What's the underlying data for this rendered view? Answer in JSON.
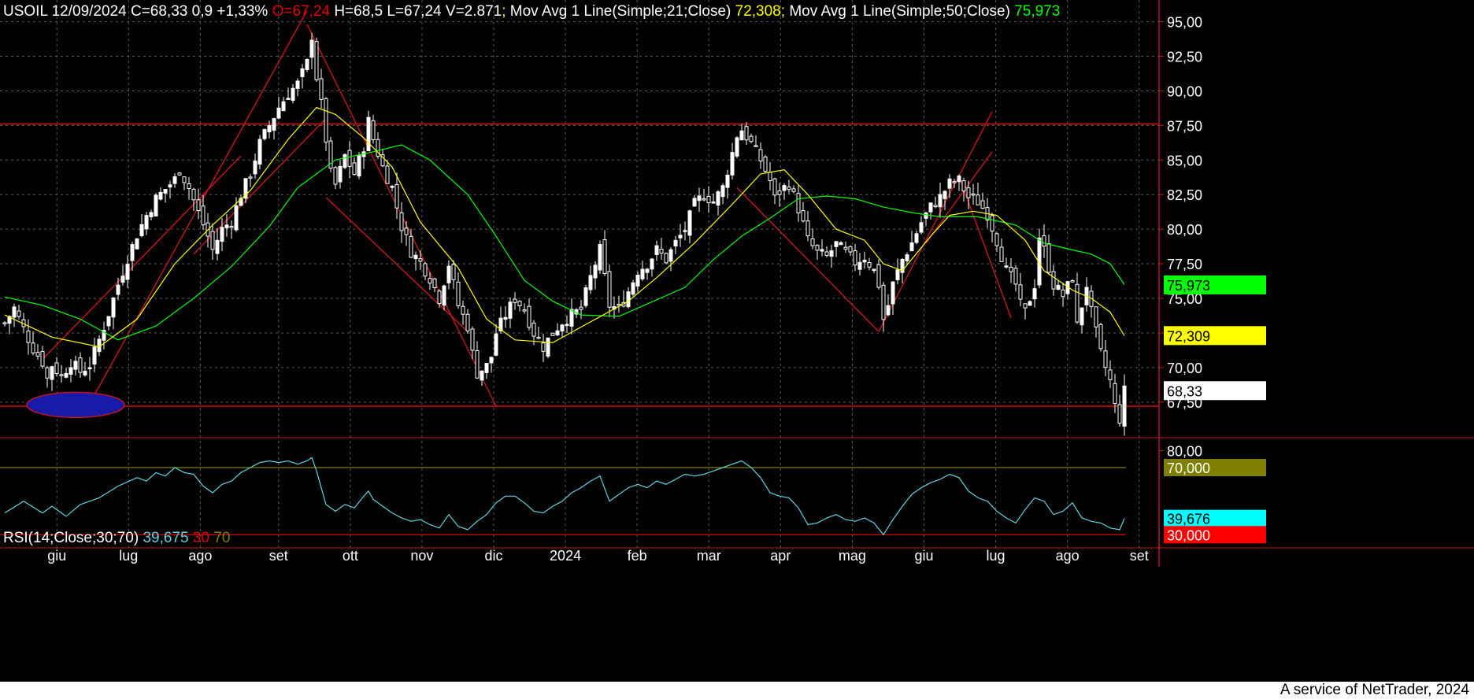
{
  "header": {
    "symbol": "USOIL",
    "date": "12/09/2024",
    "close": "C=68,33",
    "change": "0,9",
    "change_pct": "+1,33%",
    "open": "O=67,24",
    "high": "H=68,5",
    "low": "L=67,24",
    "volume": "V=2.871",
    "ma21_label": "Mov Avg 1 Line(Simple;21;Close)",
    "ma21_value": "72,308",
    "ma50_label": "Mov Avg 1 Line(Simple;50;Close)",
    "ma50_value": "75,973"
  },
  "rsi_header": {
    "label": "RSI(14;Close;30;70)",
    "value": "39,675",
    "low": "30",
    "high": "70"
  },
  "footer": "A service of NetTrader, 2024",
  "colors": {
    "background": "#000000",
    "grid": "#5a5a5a",
    "text": "#ffffff",
    "ma21": "#ffff00",
    "ma50": "#00ff00",
    "rsi": "#5fd3df",
    "trend": "#c0161a",
    "down": "#e60000",
    "level70": "#808000"
  },
  "chart_data": [
    {
      "type": "candlestick",
      "symbol": "USOIL",
      "ylim": [
        65.5,
        96.0
      ],
      "y_ticks": [
        "95,00",
        "92,50",
        "90,00",
        "87,50",
        "85,00",
        "82,50",
        "80,00",
        "77,50",
        "75,00",
        "72,50",
        "70,00",
        "67,50"
      ],
      "x_tick_labels": [
        "giu",
        "lug",
        "ago",
        "set",
        "ott",
        "nov",
        "dic",
        "2024",
        "feb",
        "mar",
        "apr",
        "mag",
        "giu",
        "lug",
        "ago",
        "set"
      ],
      "close_path": [
        [
          0,
          73.2
        ],
        [
          2,
          74.3
        ],
        [
          4,
          72.8
        ],
        [
          6,
          71.4
        ],
        [
          8,
          70.4
        ],
        [
          9,
          69.2
        ],
        [
          10,
          70.2
        ],
        [
          12,
          69.4
        ],
        [
          14,
          70.4
        ],
        [
          16,
          69.7
        ],
        [
          18,
          70.2
        ],
        [
          20,
          72.0
        ],
        [
          22,
          73.9
        ],
        [
          24,
          76.0
        ],
        [
          26,
          77.9
        ],
        [
          28,
          79.6
        ],
        [
          30,
          81.0
        ],
        [
          32,
          82.2
        ],
        [
          34,
          82.9
        ],
        [
          36,
          83.6
        ],
        [
          37,
          84.3
        ],
        [
          39,
          83.0
        ],
        [
          41,
          81.2
        ],
        [
          43,
          79.5
        ],
        [
          44,
          78.5
        ],
        [
          46,
          80.0
        ],
        [
          48,
          80.6
        ],
        [
          50,
          82.5
        ],
        [
          52,
          84.0
        ],
        [
          54,
          86.2
        ],
        [
          56,
          87.5
        ],
        [
          58,
          88.8
        ],
        [
          60,
          89.8
        ],
        [
          62,
          90.5
        ],
        [
          64,
          92.0
        ],
        [
          65,
          94.0
        ],
        [
          66,
          91.0
        ],
        [
          67,
          89.0
        ],
        [
          68,
          86.5
        ],
        [
          69,
          84.0
        ],
        [
          70,
          83.2
        ],
        [
          72,
          85.3
        ],
        [
          74,
          84.0
        ],
        [
          76,
          86.0
        ],
        [
          77,
          87.8
        ],
        [
          78,
          86.5
        ],
        [
          80,
          84.5
        ],
        [
          82,
          83.0
        ],
        [
          84,
          80.2
        ],
        [
          86,
          78.4
        ],
        [
          88,
          77.6
        ],
        [
          90,
          76.5
        ],
        [
          92,
          75.0
        ],
        [
          94,
          77.5
        ],
        [
          96,
          74.5
        ],
        [
          98,
          73.0
        ],
        [
          99,
          71.0
        ],
        [
          100,
          69.6
        ],
        [
          102,
          70.1
        ],
        [
          103,
          70.8
        ],
        [
          104,
          72.5
        ],
        [
          106,
          73.8
        ],
        [
          108,
          75.0
        ],
        [
          110,
          74.2
        ],
        [
          112,
          72.5
        ],
        [
          114,
          71.5
        ],
        [
          116,
          72.5
        ],
        [
          118,
          73.3
        ],
        [
          120,
          73.8
        ],
        [
          122,
          74.2
        ],
        [
          124,
          76.5
        ],
        [
          126,
          78.5
        ],
        [
          128,
          74.5
        ],
        [
          130,
          74.2
        ],
        [
          132,
          75.5
        ],
        [
          134,
          77.0
        ],
        [
          136,
          77.5
        ],
        [
          138,
          78.5
        ],
        [
          140,
          77.8
        ],
        [
          142,
          79.0
        ],
        [
          144,
          80.0
        ],
        [
          146,
          81.8
        ],
        [
          148,
          82.5
        ],
        [
          150,
          82.0
        ],
        [
          152,
          83.0
        ],
        [
          154,
          85.5
        ],
        [
          155,
          86.8
        ],
        [
          156,
          87.2
        ],
        [
          158,
          86.2
        ],
        [
          160,
          85.0
        ],
        [
          162,
          83.5
        ],
        [
          163,
          82.2
        ],
        [
          164,
          82.7
        ],
        [
          166,
          83.3
        ],
        [
          168,
          81.5
        ],
        [
          170,
          79.2
        ],
        [
          172,
          78.3
        ],
        [
          174,
          78.0
        ],
        [
          176,
          78.9
        ],
        [
          178,
          78.3
        ],
        [
          180,
          77.6
        ],
        [
          182,
          78.0
        ],
        [
          184,
          77.0
        ],
        [
          185,
          76.0
        ],
        [
          186,
          73.5
        ],
        [
          187,
          74.5
        ],
        [
          188,
          76.0
        ],
        [
          190,
          77.8
        ],
        [
          192,
          79.0
        ],
        [
          194,
          80.5
        ],
        [
          196,
          81.6
        ],
        [
          198,
          82.3
        ],
        [
          200,
          83.3
        ],
        [
          202,
          83.5
        ],
        [
          204,
          82.3
        ],
        [
          206,
          82.0
        ],
        [
          208,
          81.1
        ],
        [
          210,
          79.2
        ],
        [
          212,
          77.0
        ],
        [
          214,
          76.0
        ],
        [
          215,
          74.5
        ],
        [
          216,
          74.0
        ],
        [
          218,
          76.0
        ],
        [
          219,
          79.5
        ],
        [
          220,
          78.5
        ],
        [
          222,
          76.0
        ],
        [
          224,
          75.2
        ],
        [
          226,
          76.5
        ],
        [
          227,
          73.0
        ],
        [
          229,
          76.0
        ],
        [
          230,
          74.0
        ],
        [
          232,
          71.0
        ],
        [
          234,
          69.0
        ],
        [
          235,
          67.2
        ],
        [
          236,
          66.3
        ],
        [
          237,
          68.3
        ]
      ],
      "ma21_path": [
        [
          0,
          73.8
        ],
        [
          10,
          72.2
        ],
        [
          20,
          71.5
        ],
        [
          28,
          73.5
        ],
        [
          36,
          77.5
        ],
        [
          44,
          80.3
        ],
        [
          52,
          82.8
        ],
        [
          60,
          86.5
        ],
        [
          66,
          88.8
        ],
        [
          70,
          88.3
        ],
        [
          76,
          86.6
        ],
        [
          82,
          84.5
        ],
        [
          88,
          80.5
        ],
        [
          96,
          77.2
        ],
        [
          102,
          73.5
        ],
        [
          108,
          72.0
        ],
        [
          116,
          71.8
        ],
        [
          124,
          73.3
        ],
        [
          132,
          74.8
        ],
        [
          138,
          76.5
        ],
        [
          146,
          79.0
        ],
        [
          154,
          81.8
        ],
        [
          160,
          84.0
        ],
        [
          165,
          84.3
        ],
        [
          170,
          82.5
        ],
        [
          176,
          80.0
        ],
        [
          182,
          79.2
        ],
        [
          186,
          77.5
        ],
        [
          190,
          77.0
        ],
        [
          196,
          79.5
        ],
        [
          200,
          81.0
        ],
        [
          205,
          81.3
        ],
        [
          210,
          81.0
        ],
        [
          216,
          79.2
        ],
        [
          220,
          77.0
        ],
        [
          226,
          75.6
        ],
        [
          230,
          75.0
        ],
        [
          234,
          74.0
        ],
        [
          237,
          72.3
        ]
      ],
      "ma50_path": [
        [
          0,
          75.1
        ],
        [
          8,
          74.5
        ],
        [
          16,
          73.5
        ],
        [
          24,
          72.0
        ],
        [
          32,
          73.0
        ],
        [
          40,
          75.0
        ],
        [
          48,
          77.3
        ],
        [
          56,
          80.2
        ],
        [
          62,
          83.0
        ],
        [
          70,
          85.0
        ],
        [
          78,
          85.6
        ],
        [
          84,
          86.1
        ],
        [
          90,
          85.0
        ],
        [
          98,
          82.5
        ],
        [
          104,
          79.5
        ],
        [
          110,
          76.3
        ],
        [
          116,
          74.8
        ],
        [
          122,
          73.8
        ],
        [
          130,
          73.7
        ],
        [
          136,
          74.6
        ],
        [
          144,
          75.8
        ],
        [
          150,
          77.8
        ],
        [
          156,
          79.5
        ],
        [
          162,
          80.8
        ],
        [
          168,
          82.2
        ],
        [
          174,
          82.4
        ],
        [
          180,
          82.2
        ],
        [
          186,
          81.6
        ],
        [
          192,
          81.2
        ],
        [
          198,
          80.9
        ],
        [
          206,
          80.9
        ],
        [
          214,
          80.3
        ],
        [
          220,
          79.0
        ],
        [
          226,
          78.5
        ],
        [
          230,
          78.2
        ],
        [
          234,
          77.5
        ],
        [
          237,
          76.0
        ]
      ],
      "price_labels": {
        "ma50": "75,973",
        "ma21": "72,309",
        "last": "68,33"
      },
      "support_level": 67.2,
      "resistance_level": 87.6
    },
    {
      "type": "line",
      "name": "RSI",
      "ylim": [
        25,
        85
      ],
      "y_ticks": [
        "80,00"
      ],
      "levels": [
        70,
        30
      ],
      "level_labels": {
        "high": "70,000",
        "value": "39,676",
        "low": "30,000"
      },
      "path": [
        [
          0,
          43
        ],
        [
          4,
          50
        ],
        [
          8,
          43
        ],
        [
          10,
          47
        ],
        [
          13,
          41
        ],
        [
          16,
          48
        ],
        [
          20,
          52
        ],
        [
          24,
          59
        ],
        [
          28,
          64
        ],
        [
          30,
          62
        ],
        [
          32,
          67
        ],
        [
          34,
          65
        ],
        [
          36,
          70
        ],
        [
          38,
          67
        ],
        [
          40,
          66
        ],
        [
          42,
          59
        ],
        [
          44,
          55
        ],
        [
          46,
          60
        ],
        [
          48,
          62
        ],
        [
          50,
          67
        ],
        [
          52,
          70
        ],
        [
          54,
          73
        ],
        [
          56,
          74
        ],
        [
          58,
          73
        ],
        [
          60,
          74
        ],
        [
          62,
          72
        ],
        [
          64,
          74
        ],
        [
          65,
          76
        ],
        [
          66,
          68
        ],
        [
          68,
          48
        ],
        [
          70,
          44
        ],
        [
          72,
          48
        ],
        [
          74,
          46
        ],
        [
          76,
          53
        ],
        [
          77,
          56
        ],
        [
          78,
          51
        ],
        [
          80,
          47
        ],
        [
          82,
          43
        ],
        [
          84,
          40
        ],
        [
          86,
          38
        ],
        [
          88,
          39
        ],
        [
          90,
          36
        ],
        [
          92,
          34
        ],
        [
          94,
          42
        ],
        [
          96,
          35
        ],
        [
          98,
          33
        ],
        [
          100,
          38
        ],
        [
          102,
          42
        ],
        [
          104,
          49
        ],
        [
          106,
          53
        ],
        [
          108,
          53
        ],
        [
          110,
          49
        ],
        [
          112,
          44
        ],
        [
          114,
          43
        ],
        [
          116,
          47
        ],
        [
          118,
          50
        ],
        [
          120,
          55
        ],
        [
          122,
          58
        ],
        [
          124,
          62
        ],
        [
          126,
          65
        ],
        [
          128,
          50
        ],
        [
          130,
          54
        ],
        [
          132,
          58
        ],
        [
          134,
          60
        ],
        [
          136,
          58
        ],
        [
          138,
          62
        ],
        [
          140,
          60
        ],
        [
          142,
          63
        ],
        [
          144,
          66
        ],
        [
          146,
          65
        ],
        [
          148,
          66
        ],
        [
          150,
          68
        ],
        [
          152,
          70
        ],
        [
          154,
          72
        ],
        [
          156,
          74
        ],
        [
          158,
          70
        ],
        [
          160,
          64
        ],
        [
          162,
          55
        ],
        [
          164,
          53
        ],
        [
          166,
          52
        ],
        [
          168,
          46
        ],
        [
          170,
          36
        ],
        [
          172,
          37
        ],
        [
          174,
          40
        ],
        [
          176,
          42
        ],
        [
          178,
          39
        ],
        [
          180,
          38
        ],
        [
          182,
          40
        ],
        [
          184,
          37
        ],
        [
          186,
          30
        ],
        [
          188,
          39
        ],
        [
          190,
          47
        ],
        [
          192,
          54
        ],
        [
          194,
          58
        ],
        [
          196,
          61
        ],
        [
          198,
          63
        ],
        [
          200,
          66
        ],
        [
          202,
          64
        ],
        [
          204,
          56
        ],
        [
          206,
          52
        ],
        [
          208,
          50
        ],
        [
          210,
          44
        ],
        [
          212,
          40
        ],
        [
          214,
          37
        ],
        [
          216,
          45
        ],
        [
          218,
          52
        ],
        [
          220,
          50
        ],
        [
          222,
          42
        ],
        [
          224,
          44
        ],
        [
          226,
          49
        ],
        [
          228,
          40
        ],
        [
          230,
          38
        ],
        [
          232,
          37
        ],
        [
          234,
          34
        ],
        [
          236,
          33
        ],
        [
          237,
          39.7
        ]
      ]
    }
  ]
}
